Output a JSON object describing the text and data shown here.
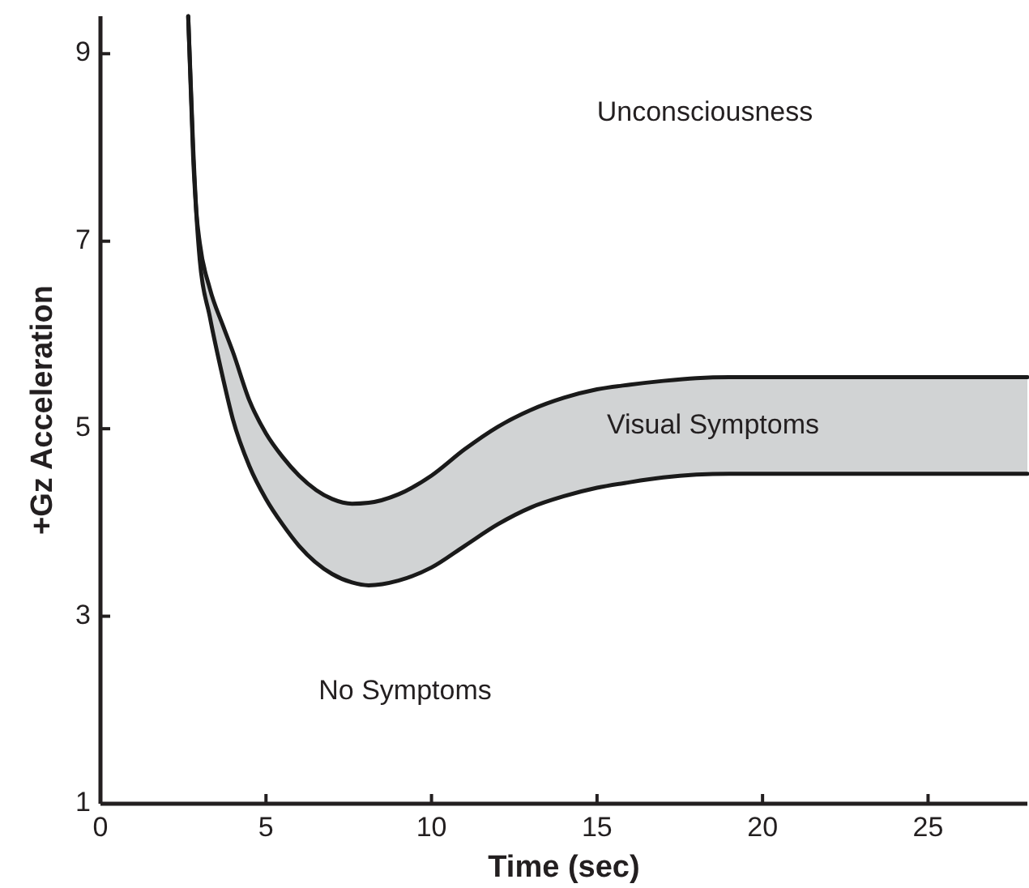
{
  "chart_data": {
    "type": "line",
    "xlabel": "Time (sec)",
    "ylabel": "+Gz Acceleration",
    "x": [
      2.65,
      2.8,
      2.9,
      3.0,
      3.3,
      3.7,
      4.0,
      4.5,
      5.0,
      5.5,
      6.0,
      7.0,
      7.6,
      8.1,
      9.0,
      10.0,
      11.0,
      12.0,
      13.0,
      14.0,
      15.0,
      16.0,
      17.0,
      18.0,
      19.0,
      20.0,
      28.0
    ],
    "series": [
      {
        "color": "#1a1a1a",
        "values": [
          9.4,
          8.0,
          7.3,
          6.98,
          6.5,
          6.1,
          5.82,
          5.3,
          4.95,
          4.7,
          4.5,
          4.25,
          4.2,
          4.21,
          4.3,
          4.5,
          4.78,
          5.02,
          5.2,
          5.33,
          5.42,
          5.47,
          5.51,
          5.54,
          5.55,
          5.55,
          5.55
        ],
        "lower": [
          9.4,
          7.9,
          7.27,
          6.8,
          6.2,
          5.54,
          5.1,
          4.6,
          4.25,
          3.98,
          3.75,
          3.45,
          3.36,
          3.33,
          3.38,
          3.52,
          3.75,
          3.98,
          4.16,
          4.28,
          4.37,
          4.43,
          4.48,
          4.51,
          4.52,
          4.52,
          4.52
        ],
        "upper": [
          9.4,
          8.0,
          7.3,
          6.98,
          6.5,
          6.1,
          5.82,
          5.3,
          4.95,
          4.7,
          4.5,
          4.25,
          4.2,
          4.21,
          4.3,
          4.5,
          4.78,
          5.02,
          5.2,
          5.33,
          5.42,
          5.47,
          5.51,
          5.54,
          5.55,
          5.55,
          5.55
        ]
      },
      {
        "color": "#1a1a1a",
        "values": [
          9.4,
          7.9,
          7.27,
          6.8,
          6.2,
          5.54,
          5.1,
          4.6,
          4.25,
          3.98,
          3.75,
          3.45,
          3.36,
          3.33,
          3.38,
          3.52,
          3.75,
          3.98,
          4.16,
          4.28,
          4.37,
          4.43,
          4.48,
          4.51,
          4.52,
          4.52,
          4.52
        ]
      }
    ],
    "xlim": [
      0,
      28
    ],
    "xticks": [
      0,
      5,
      10,
      15,
      20,
      25
    ],
    "ylim": [
      1,
      9.4
    ],
    "yticks": [
      1,
      3,
      5,
      7,
      9
    ],
    "annotations": [
      "Unconsciousness",
      "Visual Symptoms",
      "No Symptoms"
    ],
    "grid": false,
    "line_style": "solid"
  }
}
